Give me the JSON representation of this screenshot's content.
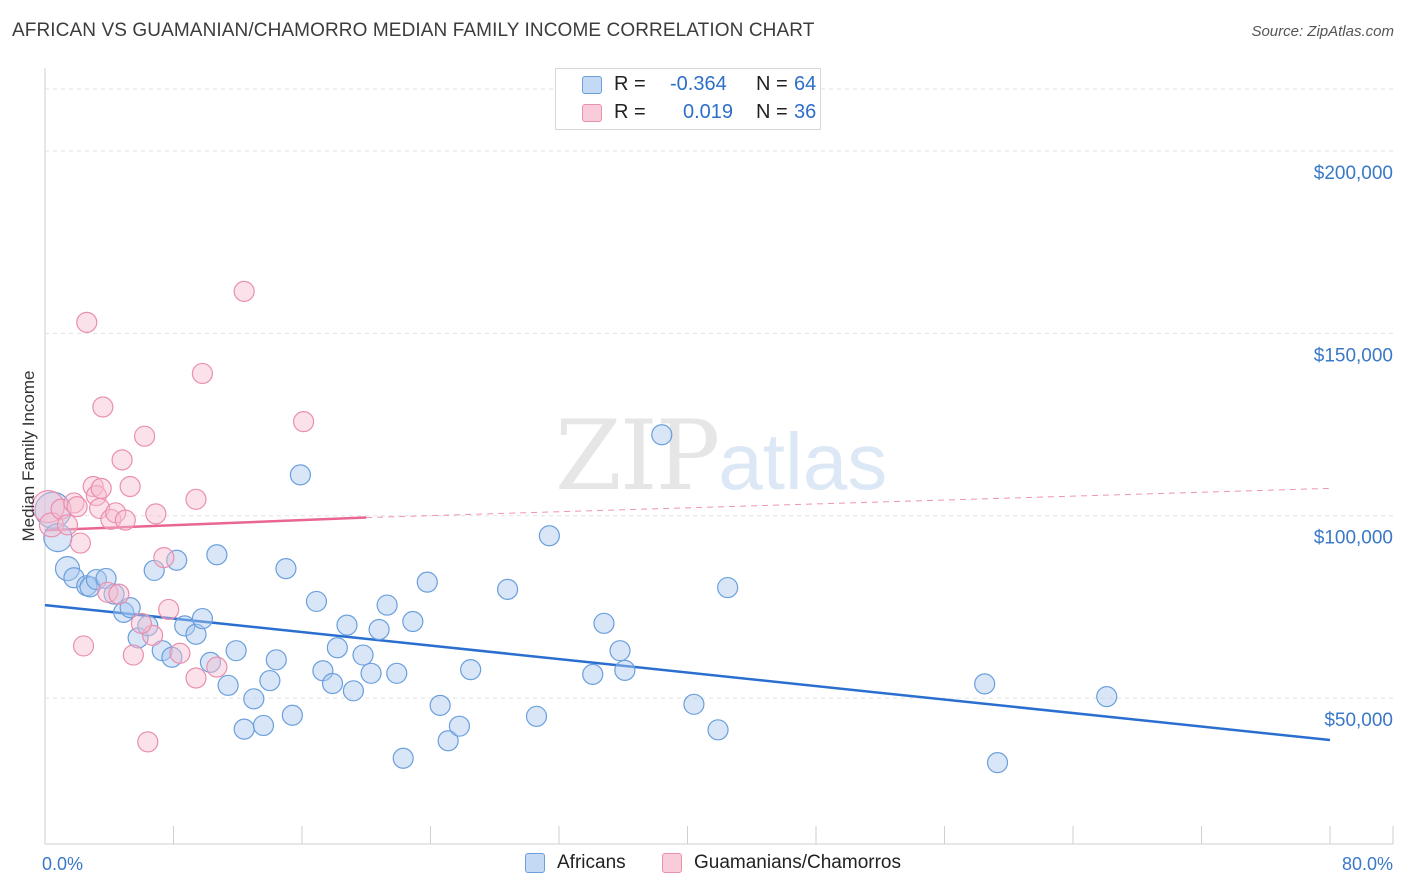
{
  "header": {
    "title": "AFRICAN VS GUAMANIAN/CHAMORRO MEDIAN FAMILY INCOME CORRELATION CHART",
    "source": "Source: ZipAtlas.com"
  },
  "watermark": {
    "zip": "ZIP",
    "atlas": "atlas"
  },
  "legend": {
    "rows": [
      {
        "r_label": "R =",
        "r_value": "-0.364",
        "n_label": "N =",
        "n_value": "64"
      },
      {
        "r_label": "R =",
        "r_value": "0.019",
        "n_label": "N =",
        "n_value": "36"
      }
    ]
  },
  "bottom_legend": {
    "series1": "Africans",
    "series2": "Guamanians/Chamorros"
  },
  "colors": {
    "africans_fill": "#a9c8ef",
    "africans_stroke": "#6a9fdc",
    "africans_line": "#2a6fd0",
    "guam_fill": "#f6bfd0",
    "guam_stroke": "#ea8fae",
    "guam_line": "#e8668f",
    "tick_text": "#3a78c8",
    "grid": "#e2e2e2"
  },
  "chart_data": {
    "type": "scatter",
    "title": "AFRICAN VS GUAMANIAN/CHAMORRO MEDIAN FAMILY INCOME CORRELATION CHART",
    "xlabel": "",
    "ylabel": "Median Family Income",
    "xlim": [
      0,
      80
    ],
    "ylim": [
      10000,
      220000
    ],
    "x_tick_labels": [
      "0.0%",
      "80.0%"
    ],
    "y_ticks": [
      50000,
      100000,
      150000,
      200000
    ],
    "y_tick_labels": [
      "$50,000",
      "$100,000",
      "$150,000",
      "$200,000"
    ],
    "series": [
      {
        "name": "Africans",
        "r": -0.364,
        "n": 64,
        "trend": {
          "x": [
            0,
            80
          ],
          "y": [
            75500,
            38500
          ]
        },
        "points": [
          [
            0.5,
            101500,
            18
          ],
          [
            0.8,
            94000,
            14
          ],
          [
            1.4,
            85500,
            12
          ],
          [
            1.8,
            83000,
            10
          ],
          [
            2.6,
            80800,
            10
          ],
          [
            2.8,
            80500,
            10
          ],
          [
            3.2,
            82500,
            10
          ],
          [
            3.8,
            82800,
            10
          ],
          [
            4.3,
            78500,
            10
          ],
          [
            4.9,
            73500,
            10
          ],
          [
            5.3,
            74800,
            10
          ],
          [
            5.8,
            66500,
            10
          ],
          [
            6.4,
            69800,
            10
          ],
          [
            6.8,
            85000,
            10
          ],
          [
            7.3,
            63000,
            10
          ],
          [
            7.9,
            61200,
            10
          ],
          [
            8.2,
            87800,
            10
          ],
          [
            8.7,
            69800,
            10
          ],
          [
            9.4,
            67500,
            10
          ],
          [
            9.8,
            71800,
            10
          ],
          [
            10.3,
            59800,
            10
          ],
          [
            10.7,
            89300,
            10
          ],
          [
            11.4,
            53500,
            10
          ],
          [
            11.9,
            63000,
            10
          ],
          [
            12.4,
            41500,
            10
          ],
          [
            13.0,
            49800,
            10
          ],
          [
            13.6,
            42500,
            10
          ],
          [
            14.0,
            54800,
            10
          ],
          [
            14.4,
            60500,
            10
          ],
          [
            15.0,
            85500,
            10
          ],
          [
            15.4,
            45300,
            10
          ],
          [
            15.9,
            111200,
            10
          ],
          [
            16.9,
            76500,
            10
          ],
          [
            17.3,
            57500,
            10
          ],
          [
            17.9,
            54000,
            10
          ],
          [
            18.2,
            63800,
            10
          ],
          [
            18.8,
            70000,
            10
          ],
          [
            19.2,
            52000,
            10
          ],
          [
            19.8,
            61800,
            10
          ],
          [
            20.3,
            56800,
            10
          ],
          [
            20.8,
            68800,
            10
          ],
          [
            21.3,
            75500,
            10
          ],
          [
            21.9,
            56800,
            10
          ],
          [
            22.3,
            33500,
            10
          ],
          [
            22.9,
            71000,
            10
          ],
          [
            23.8,
            81800,
            10
          ],
          [
            24.6,
            48000,
            10
          ],
          [
            25.1,
            38300,
            10
          ],
          [
            25.8,
            42300,
            10
          ],
          [
            26.5,
            57800,
            10
          ],
          [
            28.8,
            79800,
            10
          ],
          [
            30.6,
            45000,
            10
          ],
          [
            31.4,
            94500,
            10
          ],
          [
            34.1,
            56500,
            10
          ],
          [
            34.8,
            70500,
            10
          ],
          [
            35.8,
            63000,
            10
          ],
          [
            36.1,
            57600,
            10
          ],
          [
            38.4,
            122200,
            10
          ],
          [
            40.4,
            48300,
            10
          ],
          [
            41.9,
            41300,
            10
          ],
          [
            42.5,
            80300,
            10
          ],
          [
            58.5,
            53900,
            10
          ],
          [
            59.3,
            32300,
            10
          ],
          [
            66.1,
            50400,
            10
          ]
        ]
      },
      {
        "name": "Guamanians/Chamorros",
        "r": 0.019,
        "n": 36,
        "trend": {
          "x": [
            0,
            20
          ],
          "y": [
            96000,
            99500
          ]
        },
        "trend_extension": {
          "x": [
            20,
            80
          ],
          "y": [
            99500,
            107500
          ]
        },
        "points": [
          [
            0.2,
            102500,
            16
          ],
          [
            0.4,
            97500,
            12
          ],
          [
            1.0,
            101800,
            10
          ],
          [
            1.4,
            97500,
            10
          ],
          [
            1.8,
            103500,
            10
          ],
          [
            2.0,
            102500,
            10
          ],
          [
            2.2,
            92500,
            10
          ],
          [
            2.4,
            64300,
            10
          ],
          [
            2.6,
            153000,
            10
          ],
          [
            3.0,
            108000,
            10
          ],
          [
            3.2,
            105500,
            10
          ],
          [
            3.4,
            102000,
            10
          ],
          [
            3.5,
            107500,
            10
          ],
          [
            3.6,
            129800,
            10
          ],
          [
            3.9,
            79000,
            10
          ],
          [
            4.1,
            99000,
            10
          ],
          [
            4.4,
            100800,
            10
          ],
          [
            4.6,
            78500,
            10
          ],
          [
            4.8,
            115300,
            10
          ],
          [
            5.0,
            98800,
            10
          ],
          [
            5.3,
            108000,
            10
          ],
          [
            5.5,
            61800,
            10
          ],
          [
            6.2,
            121800,
            10
          ],
          [
            6.4,
            38000,
            10
          ],
          [
            6.7,
            67200,
            10
          ],
          [
            6.9,
            100500,
            10
          ],
          [
            7.4,
            88500,
            10
          ],
          [
            7.7,
            74300,
            10
          ],
          [
            8.4,
            62300,
            10
          ],
          [
            9.4,
            104500,
            10
          ],
          [
            9.4,
            55500,
            10
          ],
          [
            9.8,
            139000,
            10
          ],
          [
            10.7,
            58500,
            10
          ],
          [
            12.4,
            161500,
            10
          ],
          [
            16.1,
            125800,
            10
          ],
          [
            6.0,
            70500,
            10
          ]
        ]
      }
    ]
  }
}
